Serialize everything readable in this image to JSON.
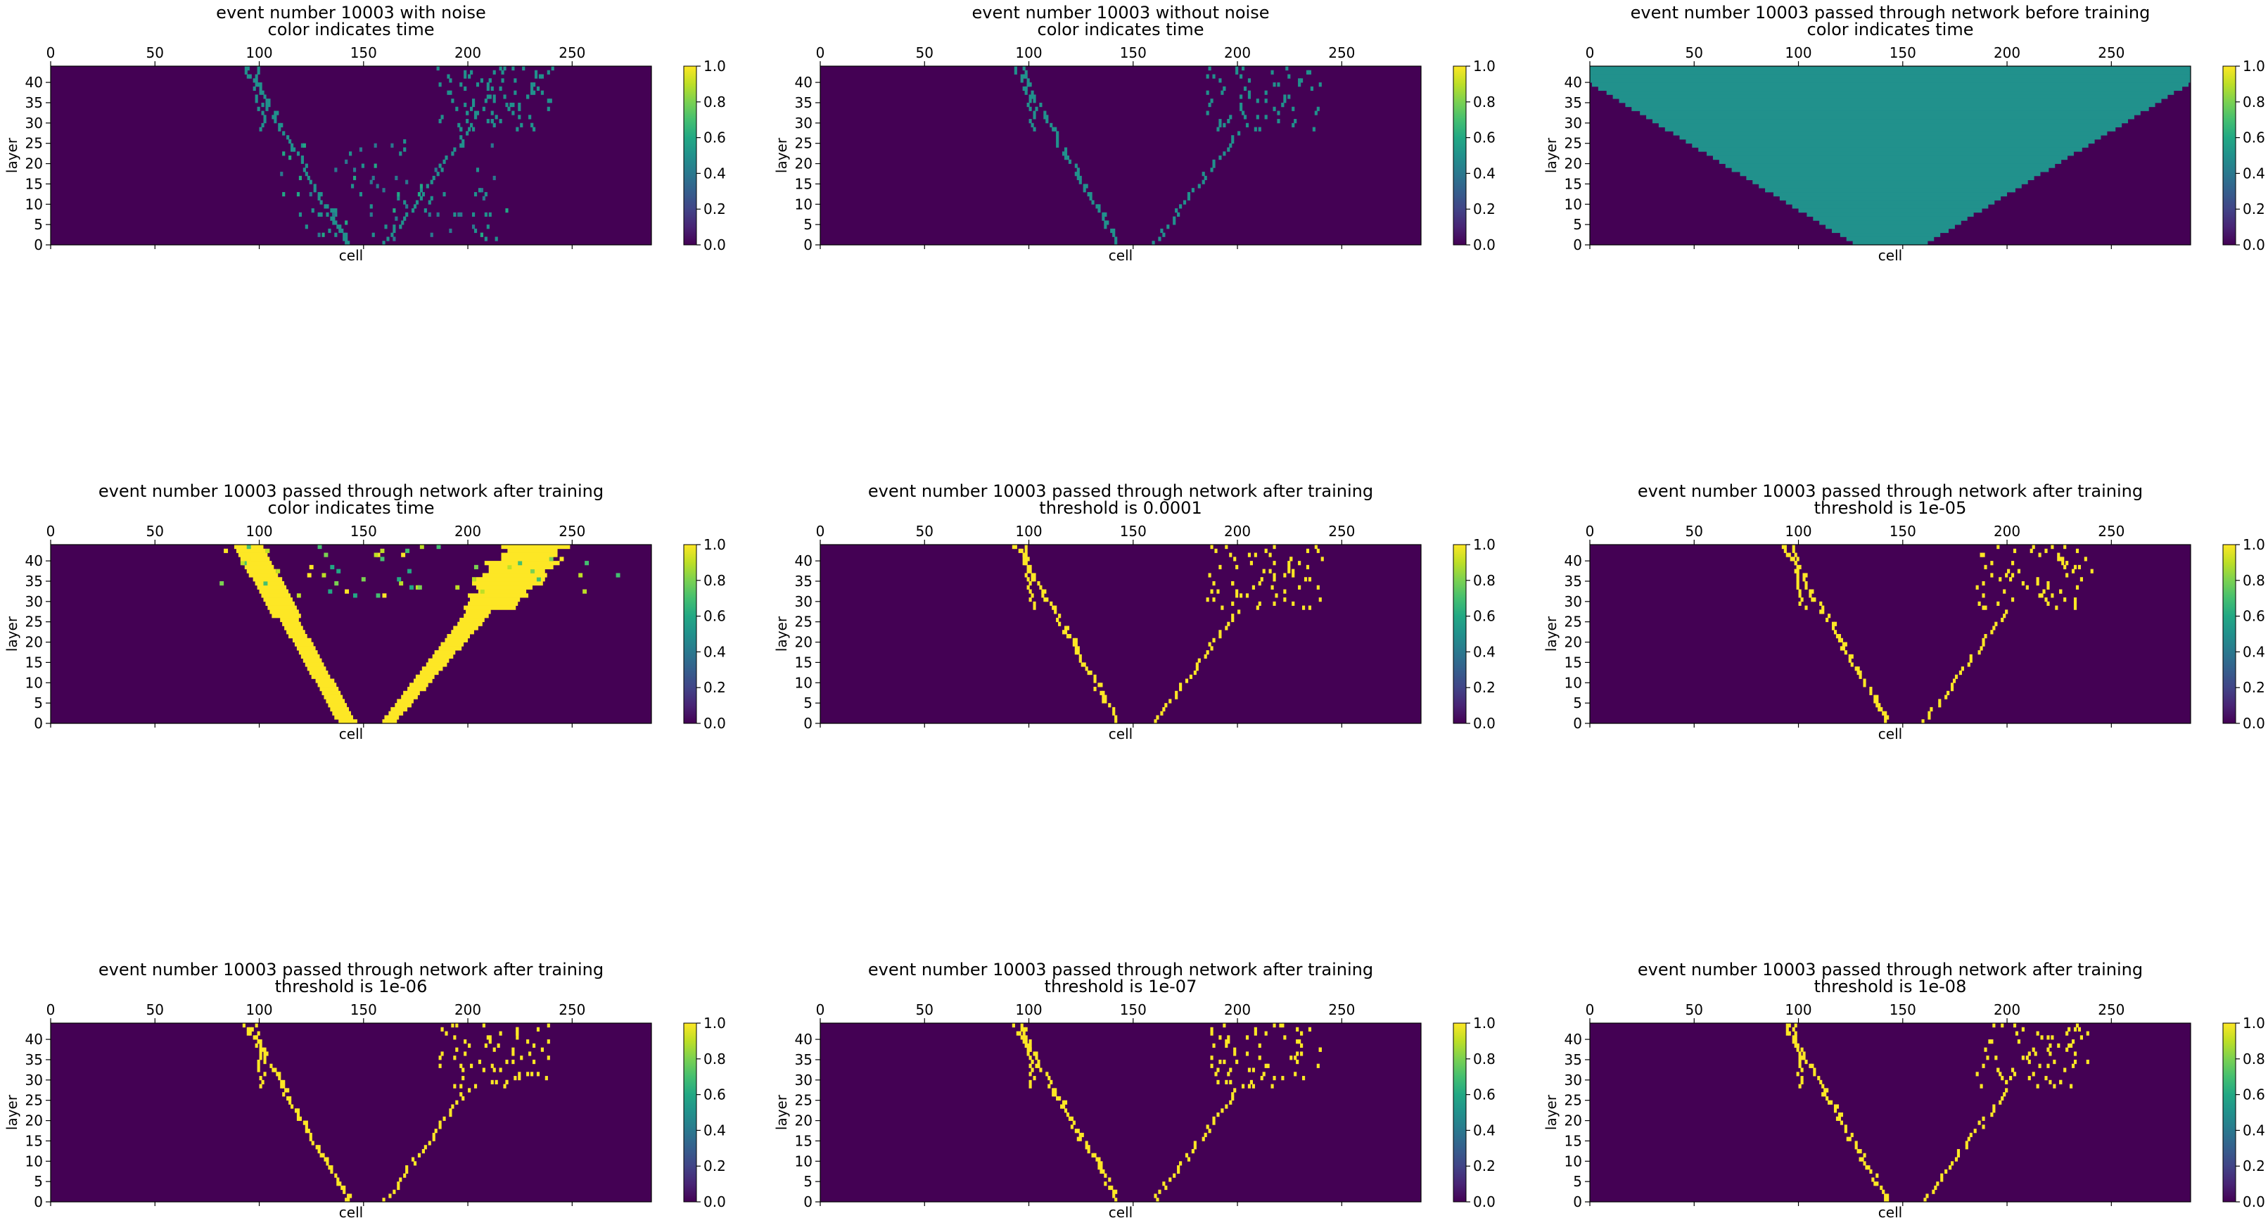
{
  "figure": {
    "colorbar_ticks": [
      "0.0",
      "0.2",
      "0.4",
      "0.6",
      "0.8",
      "1.0"
    ],
    "colormap": "viridis",
    "colors": {
      "background": "#440154",
      "mid": "#21918c",
      "high": "#fde725"
    }
  },
  "chart_data": [
    {
      "type": "heatmap",
      "title_line1": "event number 10003 with noise",
      "title_line2": "color indicates time",
      "xlabel": "cell",
      "ylabel": "layer",
      "x_ticks": [
        "0",
        "50",
        "100",
        "150",
        "200",
        "250"
      ],
      "y_ticks": [
        "0",
        "5",
        "10",
        "15",
        "20",
        "25",
        "30",
        "35",
        "40"
      ],
      "xlim": [
        0,
        288
      ],
      "ylim": [
        0,
        44
      ],
      "clim": [
        0.0,
        1.0
      ],
      "pattern": "noisy_hits",
      "hit_value": 0.5
    },
    {
      "type": "heatmap",
      "title_line1": "event number 10003 without noise",
      "title_line2": "color indicates time",
      "xlabel": "cell",
      "ylabel": "layer",
      "x_ticks": [
        "0",
        "50",
        "100",
        "150",
        "200",
        "250"
      ],
      "y_ticks": [
        "0",
        "5",
        "10",
        "15",
        "20",
        "25",
        "30",
        "35",
        "40"
      ],
      "xlim": [
        0,
        288
      ],
      "ylim": [
        0,
        44
      ],
      "clim": [
        0.0,
        1.0
      ],
      "pattern": "tracks",
      "hit_value": 0.5
    },
    {
      "type": "heatmap",
      "title_line1": "event number 10003 passed through network before training",
      "title_line2": "color indicates time",
      "xlabel": "cell",
      "ylabel": "layer",
      "x_ticks": [
        "0",
        "50",
        "100",
        "150",
        "200",
        "250"
      ],
      "y_ticks": [
        "0",
        "5",
        "10",
        "15",
        "20",
        "25",
        "30",
        "35",
        "40"
      ],
      "xlim": [
        0,
        288
      ],
      "ylim": [
        0,
        44
      ],
      "clim": [
        0.0,
        1.0
      ],
      "pattern": "funnel",
      "hit_value": 0.5
    },
    {
      "type": "heatmap",
      "title_line1": "event number 10003 passed through network after training",
      "title_line2": "color indicates time",
      "xlabel": "cell",
      "ylabel": "layer",
      "x_ticks": [
        "0",
        "50",
        "100",
        "150",
        "200",
        "250"
      ],
      "y_ticks": [
        "0",
        "5",
        "10",
        "15",
        "20",
        "25",
        "30",
        "35",
        "40"
      ],
      "xlim": [
        0,
        288
      ],
      "ylim": [
        0,
        44
      ],
      "clim": [
        0.0,
        1.0
      ],
      "pattern": "blobs",
      "hit_value": 1.0
    },
    {
      "type": "heatmap",
      "title_line1": "event number 10003 passed through network after training",
      "title_line2": "threshold is 0.0001",
      "xlabel": "cell",
      "ylabel": "layer",
      "x_ticks": [
        "0",
        "50",
        "100",
        "150",
        "200",
        "250"
      ],
      "y_ticks": [
        "0",
        "5",
        "10",
        "15",
        "20",
        "25",
        "30",
        "35",
        "40"
      ],
      "xlim": [
        0,
        288
      ],
      "ylim": [
        0,
        44
      ],
      "clim": [
        0.0,
        1.0
      ],
      "pattern": "tracks",
      "hit_value": 1.0
    },
    {
      "type": "heatmap",
      "title_line1": "event number 10003 passed through network after training",
      "title_line2": "threshold is 1e-05",
      "xlabel": "cell",
      "ylabel": "layer",
      "x_ticks": [
        "0",
        "50",
        "100",
        "150",
        "200",
        "250"
      ],
      "y_ticks": [
        "0",
        "5",
        "10",
        "15",
        "20",
        "25",
        "30",
        "35",
        "40"
      ],
      "xlim": [
        0,
        288
      ],
      "ylim": [
        0,
        44
      ],
      "clim": [
        0.0,
        1.0
      ],
      "pattern": "tracks",
      "hit_value": 1.0
    },
    {
      "type": "heatmap",
      "title_line1": "event number 10003 passed through network after training",
      "title_line2": "threshold is 1e-06",
      "xlabel": "cell",
      "ylabel": "layer",
      "x_ticks": [
        "0",
        "50",
        "100",
        "150",
        "200",
        "250"
      ],
      "y_ticks": [
        "0",
        "5",
        "10",
        "15",
        "20",
        "25",
        "30",
        "35",
        "40"
      ],
      "xlim": [
        0,
        288
      ],
      "ylim": [
        0,
        44
      ],
      "clim": [
        0.0,
        1.0
      ],
      "pattern": "tracks",
      "hit_value": 1.0
    },
    {
      "type": "heatmap",
      "title_line1": "event number 10003 passed through network after training",
      "title_line2": "threshold is 1e-07",
      "xlabel": "cell",
      "ylabel": "layer",
      "x_ticks": [
        "0",
        "50",
        "100",
        "150",
        "200",
        "250"
      ],
      "y_ticks": [
        "0",
        "5",
        "10",
        "15",
        "20",
        "25",
        "30",
        "35",
        "40"
      ],
      "xlim": [
        0,
        288
      ],
      "ylim": [
        0,
        44
      ],
      "clim": [
        0.0,
        1.0
      ],
      "pattern": "tracks",
      "hit_value": 1.0
    },
    {
      "type": "heatmap",
      "title_line1": "event number 10003 passed through network after training",
      "title_line2": "threshold is 1e-08",
      "xlabel": "cell",
      "ylabel": "layer",
      "x_ticks": [
        "0",
        "50",
        "100",
        "150",
        "200",
        "250"
      ],
      "y_ticks": [
        "0",
        "5",
        "10",
        "15",
        "20",
        "25",
        "30",
        "35",
        "40"
      ],
      "xlim": [
        0,
        288
      ],
      "ylim": [
        0,
        44
      ],
      "clim": [
        0.0,
        1.0
      ],
      "pattern": "tracks",
      "hit_value": 1.0
    }
  ]
}
